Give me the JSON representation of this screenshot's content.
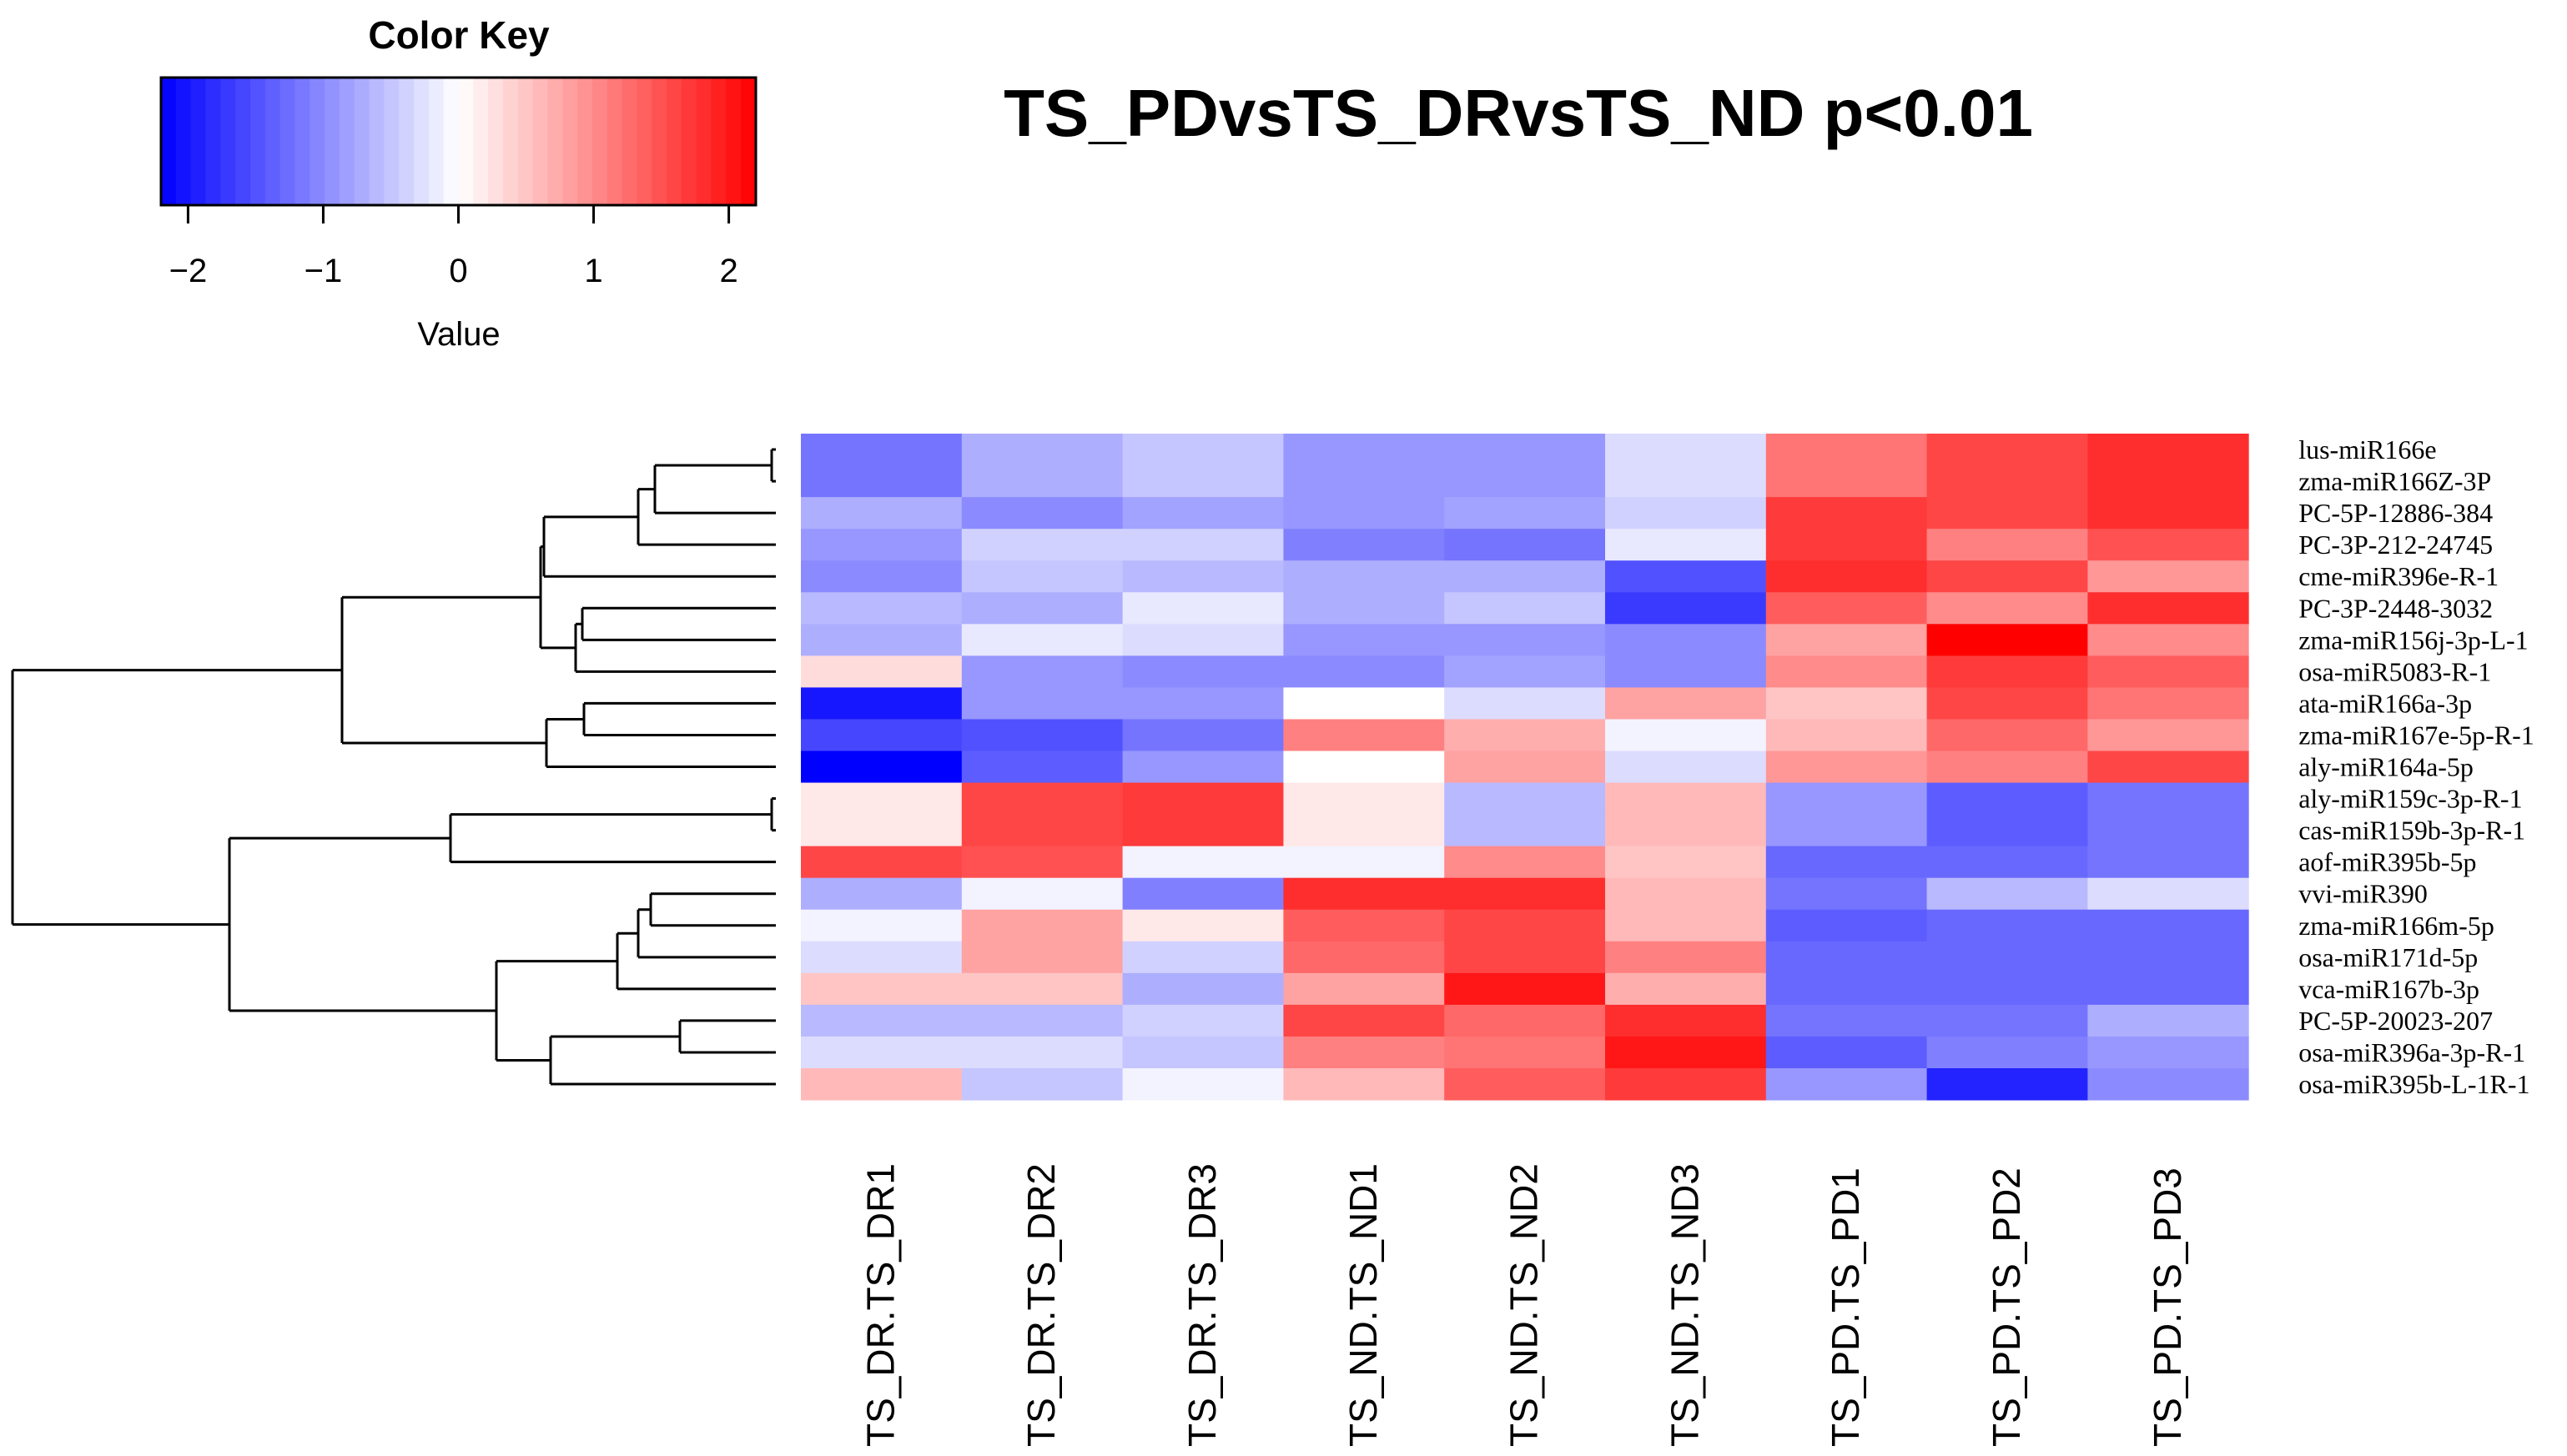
{
  "chart_data": {
    "type": "heatmap",
    "title": "TS_PDvsTS_DRvsTS_ND p<0.01",
    "columns": [
      "TS_DR.TS_DR1",
      "TS_DR.TS_DR2",
      "TS_DR.TS_DR3",
      "TS_ND.TS_ND1",
      "TS_ND.TS_ND2",
      "TS_ND.TS_ND3",
      "TS_PD.TS_PD1",
      "TS_PD.TS_PD2",
      "TS_PD.TS_PD3"
    ],
    "rows": [
      "lus-miR166e",
      "zma-miR166Z-3P",
      "PC-5P-12886-384",
      "PC-3P-212-24745",
      "cme-miR396e-R-1",
      "PC-3P-2448-3032",
      "zma-miR156j-3p-L-1",
      "osa-miR5083-R-1",
      "ata-miR166a-3p",
      "zma-miR167e-5p-R-1",
      "aly-miR164a-5p",
      "aly-miR159c-3p-R-1",
      "cas-miR159b-3p-R-1",
      "aof-miR395b-5p",
      "vvi-miR390",
      "zma-miR166m-5p",
      "osa-miR171d-5p",
      "vca-miR167b-3p",
      "PC-5P-20023-207",
      "osa-miR396a-3p-R-1",
      "osa-miR395b-L-1R-1"
    ],
    "values": [
      [
        -1.2,
        -0.7,
        -0.5,
        -0.9,
        -0.9,
        -0.3,
        1.2,
        1.6,
        1.8
      ],
      [
        -1.2,
        -0.7,
        -0.5,
        -0.9,
        -0.9,
        -0.3,
        1.2,
        1.6,
        1.8
      ],
      [
        -0.7,
        -1.0,
        -0.8,
        -0.9,
        -0.8,
        -0.4,
        1.7,
        1.6,
        1.8
      ],
      [
        -0.9,
        -0.4,
        -0.4,
        -1.1,
        -1.2,
        -0.2,
        1.7,
        1.1,
        1.5
      ],
      [
        -1.0,
        -0.5,
        -0.6,
        -0.7,
        -0.7,
        -1.5,
        1.8,
        1.6,
        0.9
      ],
      [
        -0.6,
        -0.7,
        -0.2,
        -0.7,
        -0.5,
        -1.7,
        1.4,
        1.0,
        1.8
      ],
      [
        -0.7,
        -0.2,
        -0.3,
        -0.9,
        -0.9,
        -1.0,
        0.8,
        2.2,
        1.0
      ],
      [
        0.3,
        -0.9,
        -1.0,
        -1.0,
        -0.8,
        -1.0,
        1.0,
        1.7,
        1.4
      ],
      [
        -2.0,
        -0.9,
        -0.9,
        0.0,
        -0.3,
        0.8,
        0.5,
        1.6,
        1.2
      ],
      [
        -1.6,
        -1.5,
        -1.2,
        1.1,
        0.7,
        -0.1,
        0.6,
        1.3,
        0.9
      ],
      [
        -2.2,
        -1.4,
        -0.9,
        0.0,
        0.8,
        -0.3,
        0.9,
        1.1,
        1.6
      ],
      [
        0.2,
        1.6,
        1.7,
        0.2,
        -0.6,
        0.6,
        -0.9,
        -1.4,
        -1.2
      ],
      [
        0.2,
        1.6,
        1.7,
        0.2,
        -0.6,
        0.6,
        -0.9,
        -1.4,
        -1.2
      ],
      [
        1.6,
        1.5,
        -0.1,
        -0.1,
        1.0,
        0.5,
        -1.3,
        -1.3,
        -1.2
      ],
      [
        -0.7,
        -0.1,
        -1.1,
        1.8,
        1.8,
        0.6,
        -1.2,
        -0.6,
        -0.3
      ],
      [
        -0.1,
        0.8,
        0.2,
        1.4,
        1.6,
        0.6,
        -1.4,
        -1.3,
        -1.3
      ],
      [
        -0.3,
        0.8,
        -0.4,
        1.3,
        1.6,
        1.1,
        -1.3,
        -1.3,
        -1.3
      ],
      [
        0.5,
        0.5,
        -0.7,
        0.8,
        2.0,
        0.7,
        -1.3,
        -1.3,
        -1.3
      ],
      [
        -0.6,
        -0.6,
        -0.4,
        1.6,
        1.3,
        1.8,
        -1.2,
        -1.2,
        -0.7
      ],
      [
        -0.3,
        -0.3,
        -0.5,
        1.1,
        1.2,
        2.0,
        -1.4,
        -1.1,
        -0.9
      ],
      [
        0.6,
        -0.5,
        -0.1,
        0.6,
        1.4,
        1.7,
        -0.9,
        -1.9,
        -1.0
      ]
    ],
    "color_key": {
      "title": "Color Key",
      "xlabel": "Value",
      "range": [
        -2.2,
        2.2
      ],
      "ticks": [
        "−2",
        "−1",
        "0",
        "1",
        "2"
      ],
      "tick_values": [
        -2,
        -1,
        0,
        1,
        2
      ],
      "low_color": "#0000ff",
      "mid_color": "#ffffff",
      "high_color": "#ff0000"
    },
    "row_dendrogram": true,
    "column_dendrogram": false
  }
}
